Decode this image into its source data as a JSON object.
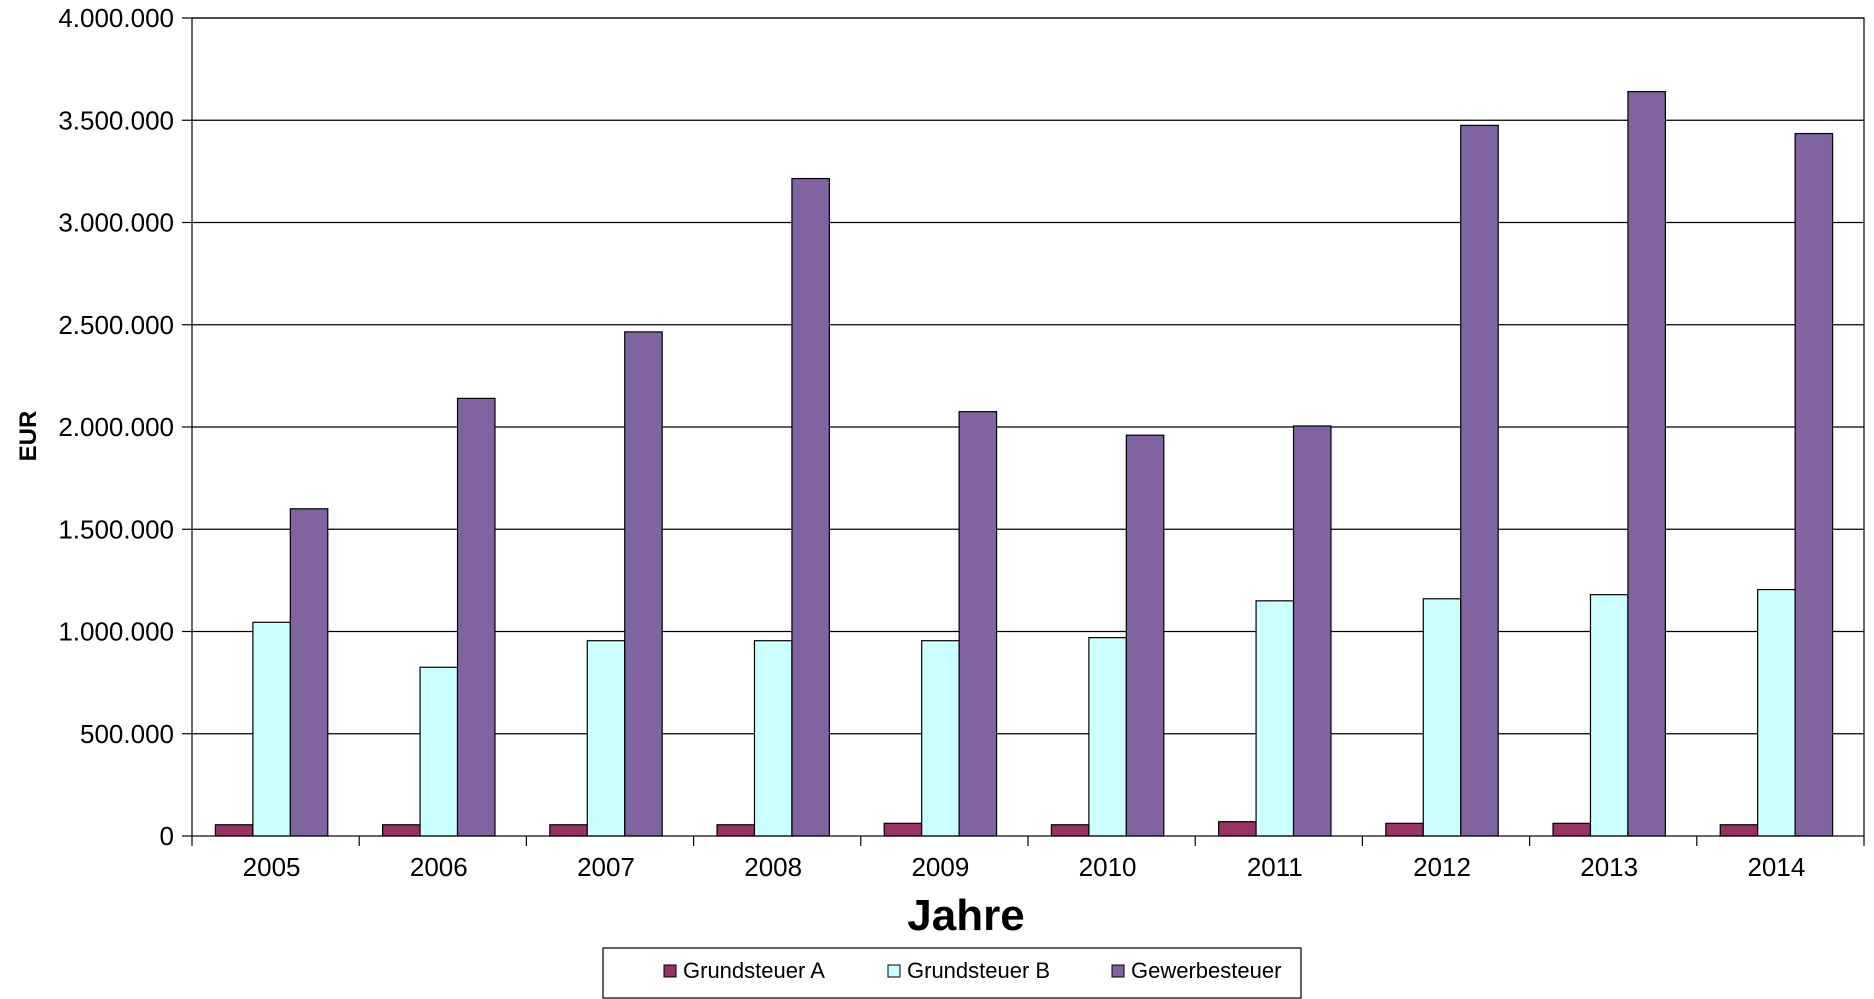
{
  "chart_data": {
    "type": "bar",
    "title": "",
    "xlabel": "Jahre",
    "ylabel": "EUR",
    "ylim": [
      0,
      4000000
    ],
    "yticks": [
      0,
      500000,
      1000000,
      1500000,
      2000000,
      2500000,
      3000000,
      3500000,
      4000000
    ],
    "ytick_labels": [
      "0",
      "500.000",
      "1.000.000",
      "1.500.000",
      "2.000.000",
      "2.500.000",
      "3.000.000",
      "3.500.000",
      "4.000.000"
    ],
    "grid": "horizontal",
    "legend_position": "bottom-center",
    "categories": [
      "2005",
      "2006",
      "2007",
      "2008",
      "2009",
      "2010",
      "2011",
      "2012",
      "2013",
      "2014"
    ],
    "series": [
      {
        "name": "Grundsteuer A",
        "color": "#993366",
        "values": [
          55000,
          55000,
          55000,
          55000,
          62000,
          55000,
          70000,
          62000,
          62000,
          55000
        ]
      },
      {
        "name": "Grundsteuer B",
        "color": "#CCFFFF",
        "values": [
          1045000,
          825000,
          955000,
          955000,
          955000,
          970000,
          1150000,
          1160000,
          1180000,
          1205000
        ]
      },
      {
        "name": "Gewerbesteuer",
        "color": "#8064A2",
        "values": [
          1600000,
          2140000,
          2465000,
          3215000,
          2075000,
          1960000,
          2005000,
          3475000,
          3640000,
          3435000
        ]
      }
    ]
  }
}
